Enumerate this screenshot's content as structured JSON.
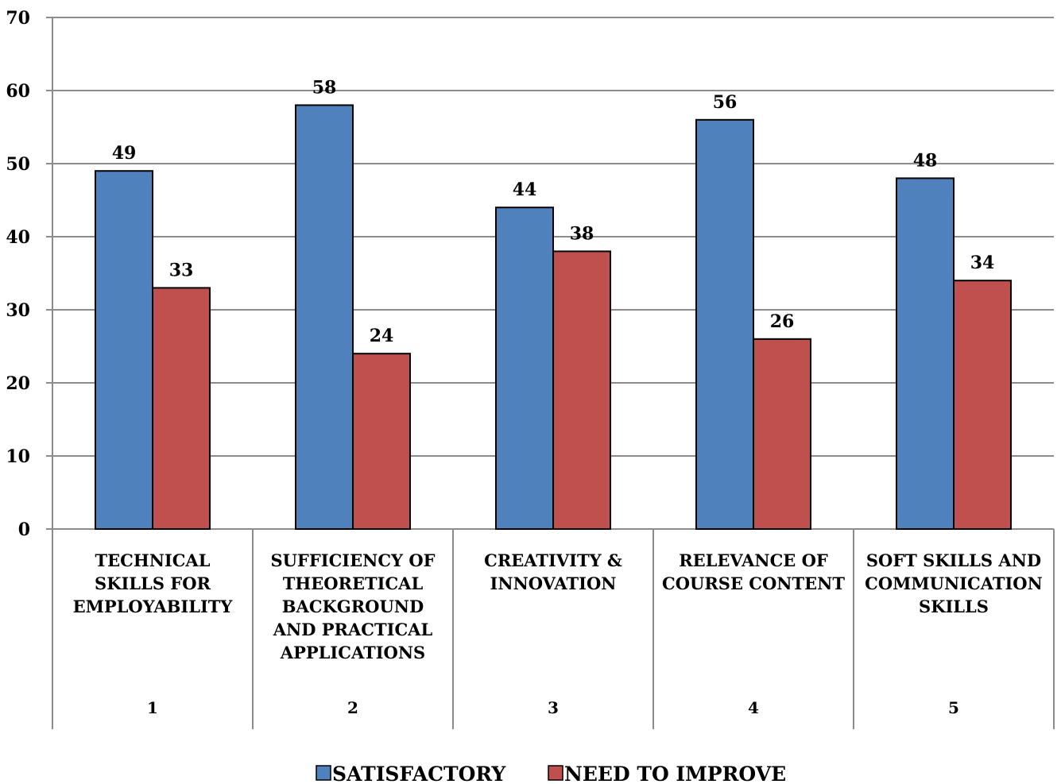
{
  "chart_data": {
    "type": "bar",
    "categories": [
      [
        "TECHNICAL",
        "SKILLS FOR",
        "EMPLOYABILITY"
      ],
      [
        "SUFFICIENCY OF",
        "THEORETICAL",
        "BACKGROUND",
        "AND PRACTICAL",
        "APPLICATIONS"
      ],
      [
        "CREATIVITY &",
        "INNOVATION"
      ],
      [
        "RELEVANCE OF",
        "COURSE CONTENT"
      ],
      [
        "SOFT SKILLS AND",
        "COMMUNICATION",
        "SKILLS"
      ]
    ],
    "category_index": [
      "1",
      "2",
      "3",
      "4",
      "5"
    ],
    "series": [
      {
        "name": "SATISFACTORY",
        "values": [
          49,
          58,
          44,
          56,
          48
        ],
        "color": "#4F81BD"
      },
      {
        "name": "NEED TO IMPROVE",
        "values": [
          33,
          24,
          38,
          26,
          34
        ],
        "color": "#C0504D"
      }
    ],
    "ylim": [
      0,
      70
    ],
    "yticks": [
      0,
      10,
      20,
      30,
      40,
      50,
      60,
      70
    ],
    "grid": true,
    "data_labels": true,
    "legend_position": "bottom",
    "title": "",
    "xlabel": "",
    "ylabel": ""
  }
}
